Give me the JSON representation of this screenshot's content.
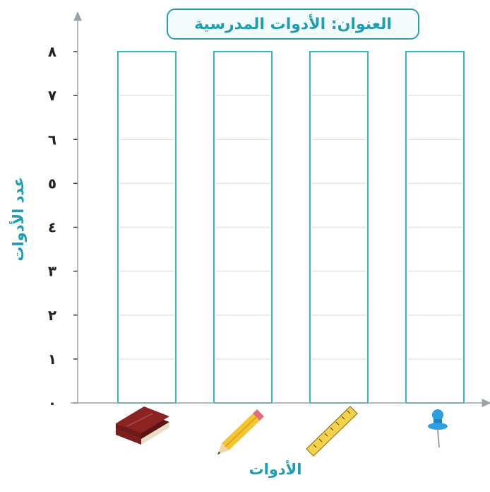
{
  "chart_data": {
    "type": "bar",
    "title": "العنوان: الأدوات المدرسية",
    "xlabel": "الأدوات",
    "ylabel": "عدد الأدوات",
    "ylim": [
      0,
      8
    ],
    "y_ticks": [
      "٠",
      "١",
      "٢",
      "٣",
      "٤",
      "٥",
      "٦",
      "٧",
      "٨"
    ],
    "categories": [
      "book-icon",
      "pencil-icon",
      "ruler-icon",
      "pushpin-icon"
    ],
    "values": [
      null,
      null,
      null,
      null
    ],
    "grid": true,
    "colors": {
      "accent": "#1e9db1",
      "bar_outline": "#1fb0c4",
      "grid": "#e2e6e8",
      "axis": "#9aa3a8"
    }
  }
}
